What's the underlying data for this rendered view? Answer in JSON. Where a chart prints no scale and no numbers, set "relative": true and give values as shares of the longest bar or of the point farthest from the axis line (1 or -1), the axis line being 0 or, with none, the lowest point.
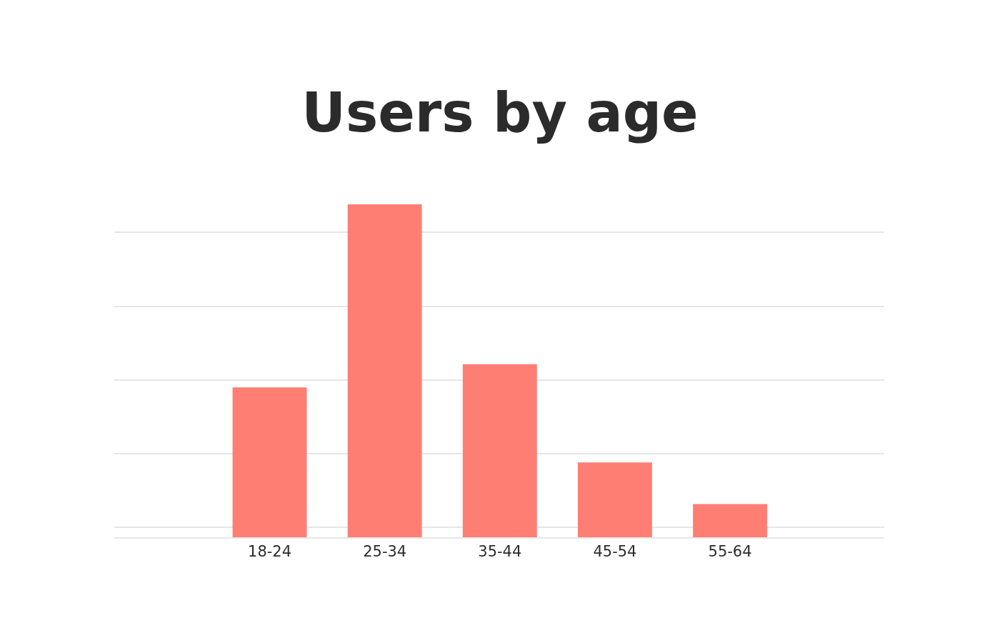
{
  "chart_data": {
    "type": "bar",
    "title": "Users by age",
    "relative": true,
    "grid": "y",
    "legend": false,
    "categories": [
      "18-24",
      "25-34",
      "35-44",
      "45-54",
      "55-64"
    ],
    "values": [
      0.45,
      1,
      0.52,
      0.225,
      0.1
    ],
    "color": "#ff7e74"
  }
}
